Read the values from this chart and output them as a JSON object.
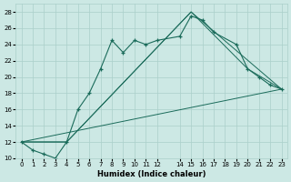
{
  "xlabel": "Humidex (Indice chaleur)",
  "bg_color": "#cce8e4",
  "grid_color": "#aacfca",
  "line_color": "#1a6b5a",
  "xlim": [
    -0.5,
    23.5
  ],
  "ylim": [
    10,
    29
  ],
  "xticks": [
    0,
    1,
    2,
    3,
    4,
    5,
    6,
    7,
    8,
    9,
    10,
    11,
    12,
    14,
    15,
    16,
    17,
    18,
    19,
    20,
    21,
    22,
    23
  ],
  "yticks": [
    10,
    12,
    14,
    16,
    18,
    20,
    22,
    24,
    26,
    28
  ],
  "series1_x": [
    0,
    1,
    2,
    3,
    4,
    5,
    6,
    7,
    8,
    9,
    10,
    11,
    12,
    14,
    15,
    16,
    17,
    19,
    20,
    21,
    22,
    23
  ],
  "series1_y": [
    12,
    11,
    10.5,
    10,
    12,
    16,
    18,
    21,
    24.5,
    23,
    24.5,
    24,
    24.5,
    25,
    27.5,
    27,
    25.5,
    24,
    21,
    20,
    19,
    18.5
  ],
  "series2_x": [
    0,
    4,
    15,
    20,
    23
  ],
  "series2_y": [
    12,
    12,
    28,
    21,
    18.5
  ],
  "series3_x": [
    0,
    4,
    15,
    23
  ],
  "series3_y": [
    12,
    12,
    28,
    18.5
  ],
  "series4_x": [
    0,
    23
  ],
  "series4_y": [
    12,
    18.5
  ]
}
